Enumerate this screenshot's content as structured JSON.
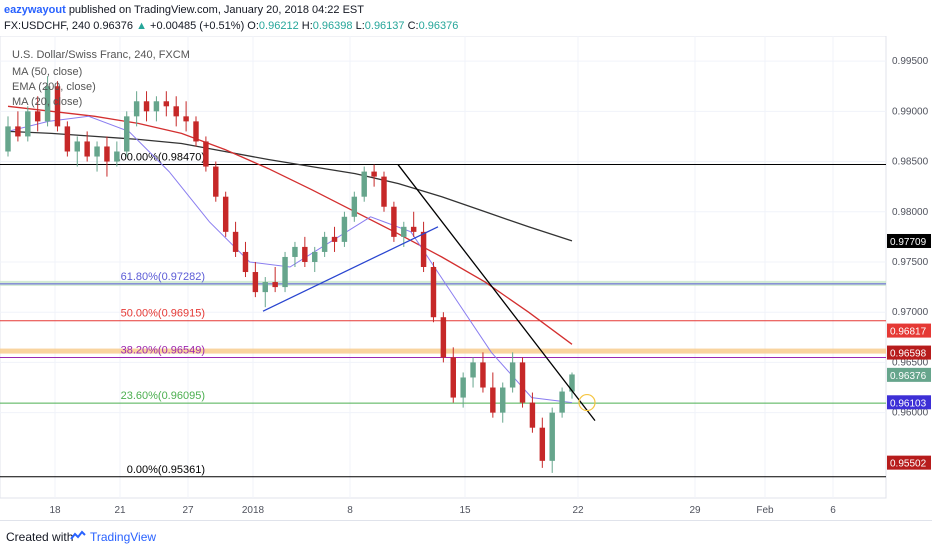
{
  "header": {
    "author": "eazywayout",
    "published": "published on TradingView.com, January 20, 2018 04:22 EST",
    "symbol": "FX:USDCHF, 240",
    "last": "0.96376",
    "change_arrow": "▲",
    "change": "+0.00485 (+0.51%)",
    "o_label": "O:",
    "o": "0.96212",
    "h_label": "H:",
    "h": "0.96398",
    "l_label": "L:",
    "l": "0.96137",
    "c_label": "C:",
    "c": "0.96376"
  },
  "footer": {
    "created": "Created with",
    "brand": "TradingView"
  },
  "chart_data": {
    "type": "candlestick",
    "title": "U.S. Dollar/Swiss Franc, 240, FXCM",
    "legend": [
      "MA (50, close)",
      "EMA (200, close)",
      "MA (20, close)"
    ],
    "ylim": [
      0.9515,
      0.9975
    ],
    "y_ticks": [
      "0.99500",
      "0.99000",
      "0.98500",
      "0.98000",
      "0.97500",
      "0.97000",
      "0.96500",
      "0.96000"
    ],
    "x_ticks": [
      "18",
      "21",
      "27",
      "2018",
      "8",
      "15",
      "22",
      "29",
      "Feb",
      "6"
    ],
    "candles": [
      [
        0.986,
        0.9895,
        0.9855,
        0.9885
      ],
      [
        0.9885,
        0.99,
        0.987,
        0.9875
      ],
      [
        0.9875,
        0.9905,
        0.987,
        0.99
      ],
      [
        0.99,
        0.9915,
        0.988,
        0.989
      ],
      [
        0.989,
        0.9935,
        0.9885,
        0.9925
      ],
      [
        0.9925,
        0.993,
        0.988,
        0.9885
      ],
      [
        0.9885,
        0.989,
        0.9855,
        0.986
      ],
      [
        0.986,
        0.9875,
        0.9845,
        0.987
      ],
      [
        0.987,
        0.988,
        0.985,
        0.9855
      ],
      [
        0.9855,
        0.987,
        0.984,
        0.9865
      ],
      [
        0.9865,
        0.9875,
        0.9835,
        0.985
      ],
      [
        0.985,
        0.987,
        0.9845,
        0.986
      ],
      [
        0.986,
        0.99,
        0.9855,
        0.9895
      ],
      [
        0.9895,
        0.992,
        0.9885,
        0.991
      ],
      [
        0.991,
        0.992,
        0.989,
        0.99
      ],
      [
        0.99,
        0.9915,
        0.989,
        0.991
      ],
      [
        0.991,
        0.992,
        0.9895,
        0.9905
      ],
      [
        0.9905,
        0.9915,
        0.9885,
        0.9895
      ],
      [
        0.9895,
        0.991,
        0.988,
        0.989
      ],
      [
        0.989,
        0.9895,
        0.9865,
        0.987
      ],
      [
        0.987,
        0.9875,
        0.984,
        0.9845
      ],
      [
        0.9845,
        0.985,
        0.981,
        0.9815
      ],
      [
        0.9815,
        0.982,
        0.9775,
        0.978
      ],
      [
        0.978,
        0.979,
        0.9755,
        0.976
      ],
      [
        0.976,
        0.977,
        0.9735,
        0.974
      ],
      [
        0.974,
        0.975,
        0.9715,
        0.972
      ],
      [
        0.972,
        0.9735,
        0.9705,
        0.973
      ],
      [
        0.973,
        0.9745,
        0.972,
        0.9725
      ],
      [
        0.9725,
        0.976,
        0.972,
        0.9755
      ],
      [
        0.9755,
        0.977,
        0.9745,
        0.9765
      ],
      [
        0.9765,
        0.9775,
        0.9745,
        0.975
      ],
      [
        0.975,
        0.9765,
        0.974,
        0.976
      ],
      [
        0.976,
        0.978,
        0.9755,
        0.9775
      ],
      [
        0.9775,
        0.9785,
        0.976,
        0.977
      ],
      [
        0.977,
        0.98,
        0.9765,
        0.9795
      ],
      [
        0.9795,
        0.982,
        0.979,
        0.9815
      ],
      [
        0.9815,
        0.9845,
        0.981,
        0.984
      ],
      [
        0.984,
        0.9847,
        0.9825,
        0.9835
      ],
      [
        0.9835,
        0.984,
        0.98,
        0.9805
      ],
      [
        0.9805,
        0.981,
        0.977,
        0.9775
      ],
      [
        0.9775,
        0.979,
        0.9765,
        0.9785
      ],
      [
        0.9785,
        0.98,
        0.9775,
        0.978
      ],
      [
        0.978,
        0.979,
        0.974,
        0.9745
      ],
      [
        0.9745,
        0.975,
        0.969,
        0.9695
      ],
      [
        0.9695,
        0.97,
        0.965,
        0.9655
      ],
      [
        0.9655,
        0.9665,
        0.961,
        0.9615
      ],
      [
        0.9615,
        0.964,
        0.9605,
        0.9635
      ],
      [
        0.9635,
        0.9655,
        0.9625,
        0.965
      ],
      [
        0.965,
        0.966,
        0.962,
        0.9625
      ],
      [
        0.9625,
        0.964,
        0.9595,
        0.96
      ],
      [
        0.96,
        0.963,
        0.959,
        0.9625
      ],
      [
        0.9625,
        0.966,
        0.962,
        0.965
      ],
      [
        0.965,
        0.9655,
        0.9605,
        0.961
      ],
      [
        0.961,
        0.962,
        0.958,
        0.9585
      ],
      [
        0.9585,
        0.9595,
        0.9545,
        0.9552
      ],
      [
        0.9552,
        0.9605,
        0.954,
        0.96
      ],
      [
        0.96,
        0.9625,
        0.9595,
        0.9621
      ],
      [
        0.9621,
        0.964,
        0.9614,
        0.9638
      ]
    ],
    "ma50": [
      0.9905,
      0.99,
      0.9895,
      0.9888,
      0.9878,
      0.9862,
      0.9843,
      0.9822,
      0.98,
      0.9778,
      0.9755,
      0.973,
      0.97,
      0.9668
    ],
    "ema200": [
      0.988,
      0.9878,
      0.9875,
      0.9872,
      0.9868,
      0.986,
      0.9852,
      0.9845,
      0.9838,
      0.9828,
      0.9815,
      0.98,
      0.9785,
      0.9771
    ],
    "ma20": [
      0.988,
      0.989,
      0.9895,
      0.988,
      0.984,
      0.979,
      0.975,
      0.9745,
      0.977,
      0.9795,
      0.978,
      0.972,
      0.966,
      0.9615,
      0.961
    ],
    "fib_levels": [
      {
        "label": "100.00%(0.98470)",
        "value": 0.9847,
        "color": "#000000"
      },
      {
        "label": "61.80%(0.97282)",
        "value": 0.97282,
        "color": "#5b5bd6"
      },
      {
        "label": "50.00%(0.96915)",
        "value": 0.96915,
        "color": "#e53935"
      },
      {
        "label": "38.20%(0.96549)",
        "value": 0.96549,
        "color": "#9c27b0"
      },
      {
        "label": "23.60%(0.96095)",
        "value": 0.96095,
        "color": "#4caf50"
      },
      {
        "label": "0.00%(0.95361)",
        "value": 0.95361,
        "color": "#000000"
      }
    ],
    "price_tags": [
      {
        "label": "0.97709",
        "value": 0.97709,
        "color": "#000000"
      },
      {
        "label": "0.96817",
        "value": 0.96817,
        "color": "#e53935"
      },
      {
        "label": "0.96598",
        "value": 0.96598,
        "color": "#b71c1c"
      },
      {
        "label": "0.96376",
        "value": 0.96376,
        "color": "#66a58c"
      },
      {
        "label": "0.96103",
        "value": 0.96103,
        "color": "#3d2fd6"
      },
      {
        "label": "0.95502",
        "value": 0.95502,
        "color": "#b71c1c"
      }
    ],
    "colors": {
      "up": "#66a58c",
      "down": "#c62828",
      "ma50": "#d32f2f",
      "ema200": "#333333",
      "ma20": "#8a7df0"
    }
  }
}
